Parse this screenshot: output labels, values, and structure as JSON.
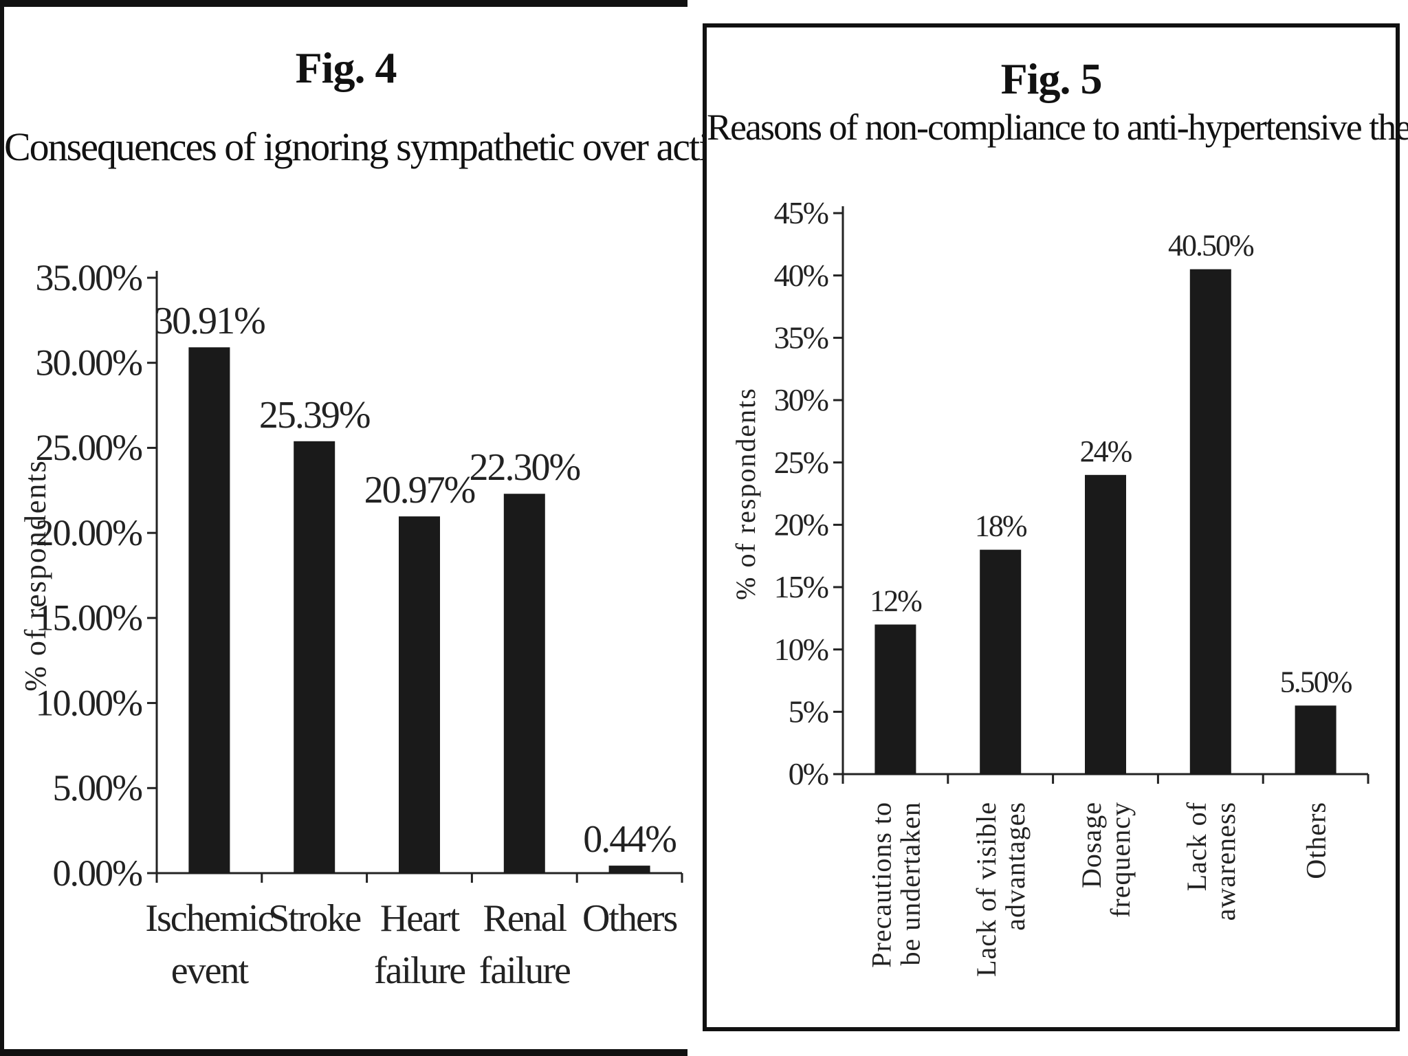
{
  "figures": [
    {
      "label": "Fig. 4",
      "title": "Consequences of ignoring sympathetic over activity"
    },
    {
      "label": "Fig. 5",
      "title": "Reasons of non-compliance to anti-hypertensive therapy"
    }
  ],
  "chart_data": [
    {
      "type": "bar",
      "title": "Consequences of ignoring sympathetic over activity",
      "ylabel": "% of respondents",
      "xlabel": "",
      "categories": [
        [
          "Ischemic",
          "event"
        ],
        [
          "Stroke"
        ],
        [
          "Heart",
          "failure"
        ],
        [
          "Renal",
          "failure"
        ],
        [
          "Others"
        ]
      ],
      "values": [
        30.91,
        25.39,
        20.97,
        22.3,
        0.44
      ],
      "value_labels": [
        "30.91%",
        "25.39%",
        "20.97%",
        "22.30%",
        "0.44%"
      ],
      "ylim": [
        0,
        35
      ],
      "yticks": [
        0,
        5,
        10,
        15,
        20,
        25,
        30,
        35
      ],
      "ytick_labels": [
        "0.00%",
        "5.00%",
        "10.00%",
        "15.00%",
        "20.00%",
        "25.00%",
        "30.00%",
        "35.00%"
      ],
      "category_label_orientation": "horizontal",
      "bar_color": "#1a1a1a",
      "grid": false,
      "legend": "none"
    },
    {
      "type": "bar",
      "title": "Reasons of non-compliance to anti-hypertensive therapy",
      "ylabel": "% of respondents",
      "xlabel": "",
      "categories": [
        [
          "Precautions to",
          "be undertaken"
        ],
        [
          "Lack of visible",
          "advantages"
        ],
        [
          "Dosage",
          "frequency"
        ],
        [
          "Lack of",
          "awareness"
        ],
        [
          "Others"
        ]
      ],
      "values": [
        12,
        18,
        24,
        40.5,
        5.5
      ],
      "value_labels": [
        "12%",
        "18%",
        "24%",
        "40.50%",
        "5.50%"
      ],
      "ylim": [
        0,
        45
      ],
      "yticks": [
        0,
        5,
        10,
        15,
        20,
        25,
        30,
        35,
        40,
        45
      ],
      "ytick_labels": [
        "0%",
        "5%",
        "10%",
        "15%",
        "20%",
        "25%",
        "30%",
        "35%",
        "40%",
        "45%"
      ],
      "category_label_orientation": "vertical",
      "bar_color": "#1a1a1a",
      "grid": false,
      "legend": "none"
    }
  ]
}
